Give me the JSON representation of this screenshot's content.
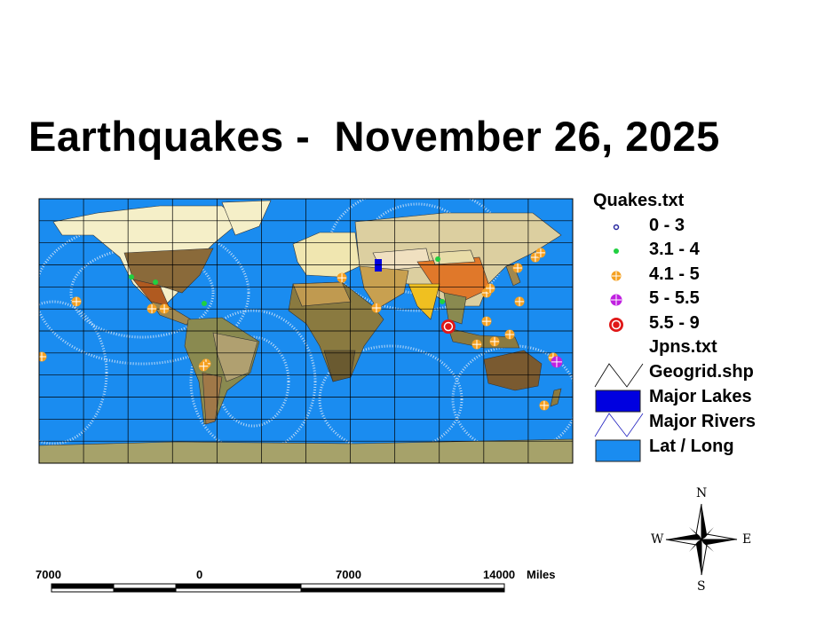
{
  "title": "Earthquakes -  November 26, 2025",
  "colors": {
    "ocean": "#1a8cf0",
    "grid": "#000000",
    "lakes": "#0000e0",
    "rivers": "#2020c0",
    "mag_0_3": "#2a2aa0",
    "mag_3_4": "#20d040",
    "mag_4_5": "#f5a020",
    "mag_5_55": "#c020e0",
    "mag_55_9": "#e01818"
  },
  "legend": {
    "quakes_title": "Quakes.txt",
    "classes": [
      {
        "label": "0 - 3",
        "key": "mag_0_3"
      },
      {
        "label": "3.1 - 4",
        "key": "mag_3_4"
      },
      {
        "label": "4.1 - 5",
        "key": "mag_4_5"
      },
      {
        "label": "5 - 5.5",
        "key": "mag_5_55"
      },
      {
        "label": "5.5 - 9",
        "key": "mag_55_9"
      }
    ],
    "layers": [
      {
        "label": "Jpns.txt",
        "symbol": "none"
      },
      {
        "label": "Geogrid.shp",
        "symbol": "line-black"
      },
      {
        "label": "Major Lakes",
        "symbol": "fill-darkblue"
      },
      {
        "label": "Major Rivers",
        "symbol": "line-blue"
      },
      {
        "label": "Lat / Long",
        "symbol": "fill-lightblue"
      }
    ]
  },
  "quakes": [
    {
      "lon": -178.2,
      "lat": -17.5,
      "class": "mag_4_5"
    },
    {
      "lon": -154.8,
      "lat": 20.0,
      "class": "mag_4_5"
    },
    {
      "lon": -103.9,
      "lat": 15.1,
      "class": "mag_4_5"
    },
    {
      "lon": -95.5,
      "lat": 15.1,
      "class": "mag_4_5"
    },
    {
      "lon": -67.4,
      "lat": -22.3,
      "class": "mag_4_5"
    },
    {
      "lon": -69.0,
      "lat": -24.0,
      "class": "mag_4_5"
    },
    {
      "lon": 24.3,
      "lat": 36.2,
      "class": "mag_4_5"
    },
    {
      "lon": 47.6,
      "lat": 15.7,
      "class": "mag_4_5"
    },
    {
      "lon": 121.9,
      "lat": 26.0,
      "class": "mag_4_5"
    },
    {
      "lon": 124.3,
      "lat": 29.0,
      "class": "mag_4_5"
    },
    {
      "lon": 144.1,
      "lat": 20.0,
      "class": "mag_4_5"
    },
    {
      "lon": 142.9,
      "lat": 42.9,
      "class": "mag_4_5"
    },
    {
      "lon": 154.8,
      "lat": 50.1,
      "class": "mag_4_5"
    },
    {
      "lon": 158.4,
      "lat": 53.2,
      "class": "mag_4_5"
    },
    {
      "lon": 121.9,
      "lat": 6.6,
      "class": "mag_4_5"
    },
    {
      "lon": 115.3,
      "lat": -9.1,
      "class": "mag_4_5"
    },
    {
      "lon": 127.3,
      "lat": -7.2,
      "class": "mag_4_5"
    },
    {
      "lon": 137.5,
      "lat": -2.4,
      "class": "mag_4_5"
    },
    {
      "lon": 160.8,
      "lat": -50.7,
      "class": "mag_4_5"
    },
    {
      "lon": 166.8,
      "lat": -18.1,
      "class": "mag_4_5"
    },
    {
      "lon": 89.0,
      "lat": 48.9,
      "class": "mag_3_4"
    },
    {
      "lon": -101.5,
      "lat": 33.2,
      "class": "mag_3_4"
    },
    {
      "lon": -68.6,
      "lat": 18.7,
      "class": "mag_3_4"
    },
    {
      "lon": 92.0,
      "lat": 20.0,
      "class": "mag_3_4"
    },
    {
      "lon": -117.7,
      "lat": 36.8,
      "class": "mag_3_4"
    },
    {
      "lon": 96.1,
      "lat": 3.0,
      "class": "mag_55_9"
    },
    {
      "lon": 169.2,
      "lat": -21.1,
      "class": "mag_5_55"
    }
  ],
  "scalebar": {
    "labels": [
      "7000",
      "0",
      "7000",
      "14000"
    ],
    "unit": "Miles"
  },
  "compass": {
    "n": "N",
    "s": "S",
    "e": "E",
    "w": "W"
  }
}
